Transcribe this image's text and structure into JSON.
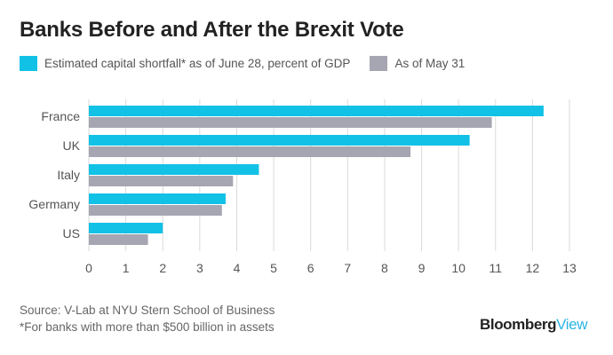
{
  "title": "Banks Before and After the Brexit Vote",
  "legend": {
    "series1": "Estimated capital shortfall* as of June 28, percent of GDP",
    "series2": "As of May 31"
  },
  "colors": {
    "series1": "#12c1e6",
    "series2": "#a6a6b2",
    "grid": "#dadada",
    "axis_text": "#555555"
  },
  "chart_data": {
    "type": "bar",
    "orientation": "horizontal",
    "title": "Banks Before and After the Brexit Vote",
    "categories": [
      "France",
      "UK",
      "Italy",
      "Germany",
      "US"
    ],
    "series": [
      {
        "name": "Estimated capital shortfall* as of June 28, percent of GDP",
        "values": [
          12.3,
          10.3,
          4.6,
          3.7,
          2.0
        ]
      },
      {
        "name": "As of May 31",
        "values": [
          10.9,
          8.7,
          3.9,
          3.6,
          1.6
        ]
      }
    ],
    "xlim": [
      0,
      13
    ],
    "xticks": [
      "0",
      "1",
      "2",
      "3",
      "4",
      "5",
      "6",
      "7",
      "8",
      "9",
      "10",
      "11",
      "12",
      "13"
    ],
    "xlabel": "",
    "ylabel": "",
    "grid": "vertical"
  },
  "footer": {
    "source": "Source: V-Lab at NYU Stern School of Business",
    "note": "*For banks with more than $500 billion in assets"
  },
  "brand": {
    "name": "Bloomberg",
    "suffix": "View"
  }
}
